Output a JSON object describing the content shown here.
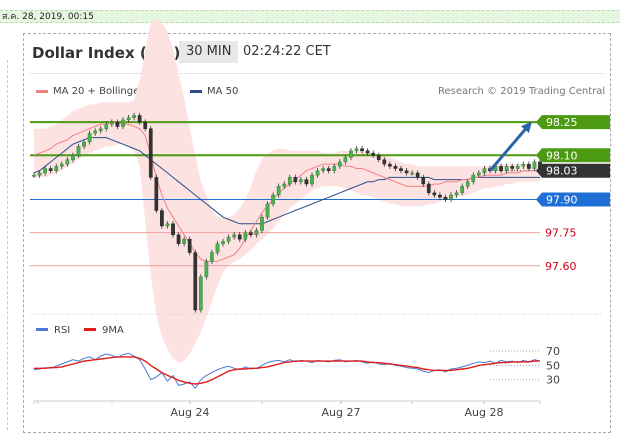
{
  "date_stamp": "ส.ค. 28, 2019, 00:15",
  "header": {
    "title": "Dollar Index (ICE)",
    "interval": "30 MIN",
    "time": "02:24:22 CET"
  },
  "legend": {
    "bb_label": "MA 20 + Bollinger Bands",
    "bb_color": "#f08080",
    "ma50_label": "MA 50",
    "ma50_color": "#2c4f8c"
  },
  "credit": "Research © 2019 Trading Central",
  "colors": {
    "resistance": "#4c9a12",
    "pivot": "#1f6fd6",
    "support": "#d0021b",
    "last": "#333333",
    "arrow": "#2c64a8"
  },
  "chart_data": [
    {
      "type": "candlestick",
      "x_ticks": [
        "Aug 24",
        "Aug 27",
        "Aug 28"
      ],
      "ylim": [
        97.4,
        98.35
      ],
      "levels": [
        {
          "value": 98.25,
          "label": "98.25",
          "kind": "resistance"
        },
        {
          "value": 98.1,
          "label": "98.10",
          "kind": "resistance"
        },
        {
          "value": 98.03,
          "label": "98.03",
          "kind": "last"
        },
        {
          "value": 97.9,
          "label": "97.90",
          "kind": "pivot"
        },
        {
          "value": 97.75,
          "label": "97.75",
          "kind": "support"
        },
        {
          "value": 97.6,
          "label": "97.60",
          "kind": "support"
        }
      ],
      "close": [
        98.01,
        98.02,
        98.04,
        98.03,
        98.05,
        98.06,
        98.08,
        98.1,
        98.14,
        98.16,
        98.2,
        98.21,
        98.22,
        98.24,
        98.25,
        98.23,
        98.26,
        98.27,
        98.28,
        98.25,
        98.22,
        98.0,
        97.85,
        97.78,
        97.79,
        97.74,
        97.7,
        97.72,
        97.66,
        97.4,
        97.55,
        97.62,
        97.66,
        97.7,
        97.71,
        97.73,
        97.74,
        97.72,
        97.75,
        97.74,
        97.76,
        97.82,
        97.88,
        97.92,
        97.96,
        97.97,
        98.0,
        97.98,
        97.99,
        97.97,
        98.01,
        98.03,
        98.04,
        98.03,
        98.05,
        98.07,
        98.09,
        98.12,
        98.13,
        98.12,
        98.11,
        98.1,
        98.08,
        98.06,
        98.05,
        98.04,
        98.03,
        98.02,
        98.02,
        98.0,
        97.97,
        97.93,
        97.92,
        97.91,
        97.9,
        97.92,
        97.93,
        97.96,
        97.98,
        98.01,
        98.02,
        98.04,
        98.03,
        98.05,
        98.03,
        98.05,
        98.04,
        98.05,
        98.06,
        98.04,
        98.07,
        98.03
      ],
      "ma20": [
        98.1,
        98.11,
        98.12,
        98.13,
        98.15,
        98.16,
        98.17,
        98.19,
        98.2,
        98.21,
        98.22,
        98.23,
        98.24,
        98.24,
        98.25,
        98.25,
        98.24,
        98.24,
        98.23,
        98.22,
        98.19,
        98.1,
        98.0,
        97.92,
        97.86,
        97.82,
        97.78,
        97.74,
        97.7,
        97.66,
        97.63,
        97.62,
        97.62,
        97.62,
        97.63,
        97.64,
        97.65,
        97.68,
        97.72,
        97.76,
        97.8,
        97.84,
        97.87,
        97.9,
        97.93,
        97.95,
        97.97,
        97.99,
        98.01,
        98.03,
        98.04,
        98.05,
        98.06,
        98.06,
        98.06,
        98.06,
        98.05,
        98.05,
        98.04,
        98.04,
        98.03,
        98.02,
        98.01,
        98.0,
        97.99,
        97.98,
        97.97,
        97.96,
        97.96,
        97.96,
        97.96,
        97.96,
        97.97,
        97.97,
        97.98,
        97.98,
        97.98,
        97.99,
        97.99,
        98.0,
        98.0,
        98.01,
        98.01,
        98.01,
        98.01,
        98.02,
        98.02,
        98.02,
        98.03,
        98.03,
        98.03,
        98.03
      ],
      "bb_upper": [
        98.22,
        98.22,
        98.22,
        98.23,
        98.24,
        98.26,
        98.28,
        98.3,
        98.31,
        98.32,
        98.33,
        98.33,
        98.34,
        98.34,
        98.34,
        98.34,
        98.34,
        98.34,
        98.35,
        98.44,
        98.57,
        98.7,
        98.72,
        98.7,
        98.66,
        98.58,
        98.47,
        98.36,
        98.22,
        98.1,
        97.98,
        97.92,
        97.85,
        97.82,
        97.82,
        97.82,
        97.83,
        97.86,
        97.9,
        97.96,
        98.03,
        98.08,
        98.11,
        98.12,
        98.13,
        98.13,
        98.12,
        98.12,
        98.12,
        98.12,
        98.12,
        98.12,
        98.11,
        98.11,
        98.11,
        98.12,
        98.12,
        98.12,
        98.12,
        98.12,
        98.11,
        98.11,
        98.1,
        98.1,
        98.09,
        98.08,
        98.07,
        98.06,
        98.06,
        98.05,
        98.05,
        98.05,
        98.05,
        98.05,
        98.05,
        98.05,
        98.05,
        98.05,
        98.05,
        98.05,
        98.05,
        98.05,
        98.05,
        98.06,
        98.06,
        98.06,
        98.06,
        98.06,
        98.06,
        98.06,
        98.06,
        98.06
      ],
      "bb_lower": [
        98.0,
        98.0,
        98.0,
        98.01,
        98.02,
        98.03,
        98.05,
        98.06,
        98.08,
        98.1,
        98.11,
        98.12,
        98.13,
        98.14,
        98.14,
        98.15,
        98.15,
        98.14,
        98.12,
        98.05,
        97.8,
        97.55,
        97.38,
        97.28,
        97.22,
        97.18,
        97.16,
        97.17,
        97.2,
        97.25,
        97.3,
        97.37,
        97.44,
        97.51,
        97.57,
        97.6,
        97.62,
        97.63,
        97.65,
        97.67,
        97.7,
        97.72,
        97.74,
        97.77,
        97.8,
        97.83,
        97.86,
        97.88,
        97.9,
        97.92,
        97.94,
        97.95,
        97.96,
        97.96,
        97.96,
        97.96,
        97.95,
        97.94,
        97.93,
        97.92,
        97.92,
        97.91,
        97.9,
        97.89,
        97.88,
        97.88,
        97.87,
        97.87,
        97.87,
        97.87,
        97.87,
        97.88,
        97.88,
        97.89,
        97.9,
        97.9,
        97.91,
        97.92,
        97.92,
        97.93,
        97.94,
        97.95,
        97.95,
        97.96,
        97.96,
        97.97,
        97.97,
        97.98,
        97.98,
        97.98,
        97.98,
        97.98
      ],
      "ma50": [
        98.02,
        98.03,
        98.05,
        98.07,
        98.09,
        98.11,
        98.13,
        98.15,
        98.16,
        98.17,
        98.18,
        98.18,
        98.18,
        98.18,
        98.17,
        98.16,
        98.15,
        98.14,
        98.13,
        98.12,
        98.1,
        98.08,
        98.06,
        98.04,
        98.02,
        98.0,
        97.98,
        97.96,
        97.94,
        97.92,
        97.9,
        97.88,
        97.86,
        97.84,
        97.82,
        97.81,
        97.8,
        97.79,
        97.79,
        97.79,
        97.79,
        97.79,
        97.8,
        97.81,
        97.82,
        97.83,
        97.84,
        97.85,
        97.86,
        97.87,
        97.88,
        97.89,
        97.9,
        97.91,
        97.92,
        97.93,
        97.94,
        97.95,
        97.96,
        97.97,
        97.98,
        97.98,
        97.99,
        97.99,
        98.0,
        98.0,
        98.0,
        98.0,
        98.0,
        98.0,
        98.0,
        98.0,
        97.99,
        97.99,
        97.99,
        97.99,
        97.99,
        97.99,
        97.99,
        98.0,
        98.0,
        98.0,
        98.0,
        98.0,
        98.0,
        98.0,
        98.0,
        98.0,
        98.0,
        98.0,
        98.0,
        98.0
      ],
      "forecast_arrow": {
        "from": 98.03,
        "to": 98.25
      }
    },
    {
      "type": "line",
      "legend": [
        {
          "name": "RSI",
          "color": "#4a7bd4"
        },
        {
          "name": "9MA",
          "color": "#e31b1b"
        }
      ],
      "ylim": [
        10,
        80
      ],
      "y_ticks": [
        70,
        50,
        30
      ],
      "rsi": [
        44,
        45,
        47,
        46,
        49,
        52,
        55,
        58,
        56,
        60,
        62,
        58,
        63,
        66,
        64,
        61,
        65,
        67,
        63,
        58,
        45,
        30,
        34,
        40,
        28,
        36,
        22,
        24,
        27,
        18,
        30,
        36,
        40,
        44,
        47,
        49,
        46,
        44,
        48,
        45,
        46,
        50,
        54,
        56,
        57,
        55,
        58,
        55,
        57,
        56,
        54,
        57,
        56,
        55,
        57,
        58,
        55,
        56,
        57,
        55,
        53,
        55,
        52,
        51,
        53,
        50,
        49,
        47,
        46,
        45,
        42,
        40,
        43,
        44,
        41,
        45,
        46,
        48,
        50,
        53,
        55,
        54,
        56,
        53,
        57,
        55,
        56,
        54,
        57,
        55,
        58,
        56
      ],
      "ma9": [
        46,
        46,
        46,
        47,
        47,
        48,
        50,
        52,
        54,
        56,
        57,
        58,
        59,
        60,
        61,
        62,
        62,
        62,
        62,
        60,
        56,
        50,
        45,
        40,
        36,
        33,
        29,
        27,
        25,
        24,
        25,
        27,
        30,
        34,
        38,
        42,
        44,
        45,
        45,
        46,
        46,
        47,
        48,
        50,
        52,
        54,
        55,
        56,
        56,
        56,
        56,
        56,
        56,
        56,
        56,
        56,
        56,
        56,
        56,
        56,
        55,
        54,
        54,
        53,
        52,
        51,
        50,
        49,
        48,
        47,
        45,
        44,
        43,
        43,
        43,
        43,
        44,
        45,
        46,
        48,
        50,
        51,
        52,
        53,
        54,
        54,
        55,
        55,
        55,
        55,
        56,
        56
      ]
    }
  ]
}
